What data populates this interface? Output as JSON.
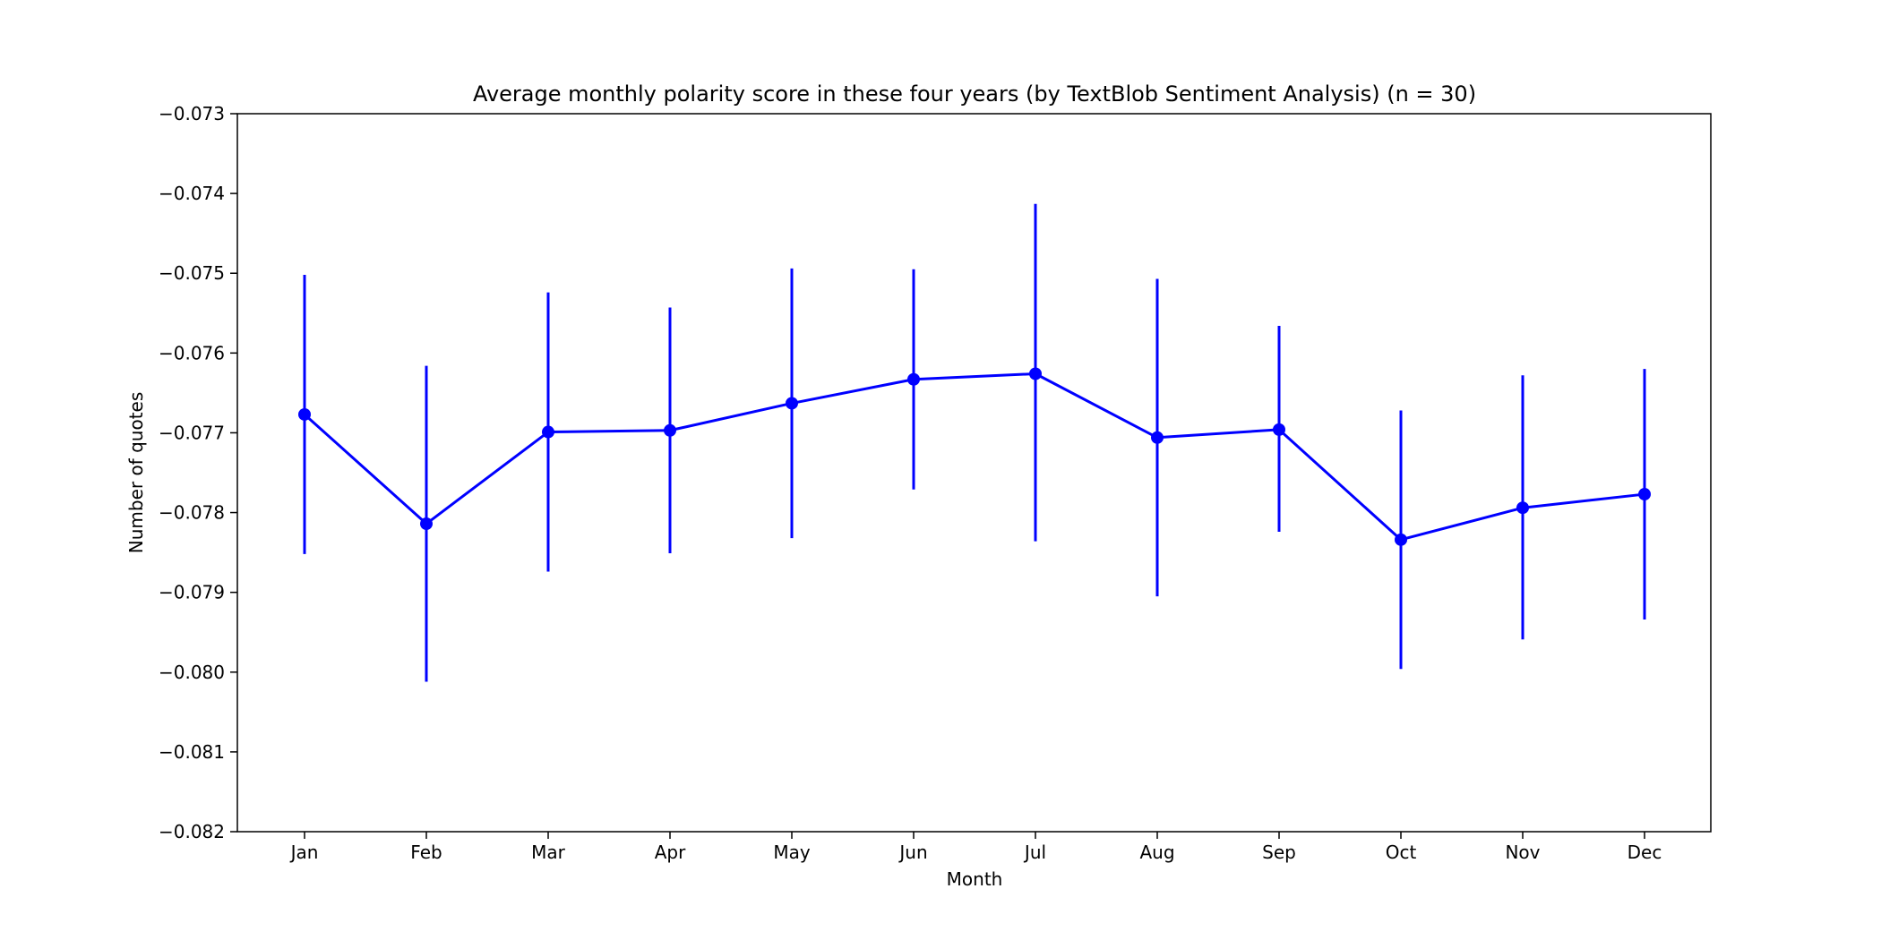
{
  "chart_data": {
    "type": "line",
    "title": "Average monthly polarity score in these four years (by TextBlob Sentiment Analysis) (n = 30)",
    "xlabel": "Month",
    "ylabel": "Number of quotes",
    "categories": [
      "Jan",
      "Feb",
      "Mar",
      "Apr",
      "May",
      "Jun",
      "Jul",
      "Aug",
      "Sep",
      "Oct",
      "Nov",
      "Dec"
    ],
    "series": [
      {
        "values": [
          -0.07677,
          -0.07814,
          -0.07699,
          -0.07697,
          -0.07663,
          -0.07633,
          -0.07626,
          -0.07706,
          -0.07696,
          -0.07834,
          -0.07794,
          -0.07777
        ],
        "error_low": [
          -0.07852,
          -0.08012,
          -0.07874,
          -0.07851,
          -0.07832,
          -0.07771,
          -0.07836,
          -0.07905,
          -0.07824,
          -0.07996,
          -0.07959,
          -0.07934
        ],
        "error_high": [
          -0.07502,
          -0.07616,
          -0.07524,
          -0.07543,
          -0.07494,
          -0.07495,
          -0.07413,
          -0.07507,
          -0.07566,
          -0.07672,
          -0.07628,
          -0.0762
        ],
        "color": "#0000ff"
      }
    ],
    "yticks": [
      "−0.073",
      "−0.074",
      "−0.075",
      "−0.076",
      "−0.077",
      "−0.078",
      "−0.079",
      "−0.080",
      "−0.081",
      "−0.082"
    ],
    "ylim": [
      -0.082,
      -0.073
    ],
    "grid": false,
    "legend": "none"
  }
}
